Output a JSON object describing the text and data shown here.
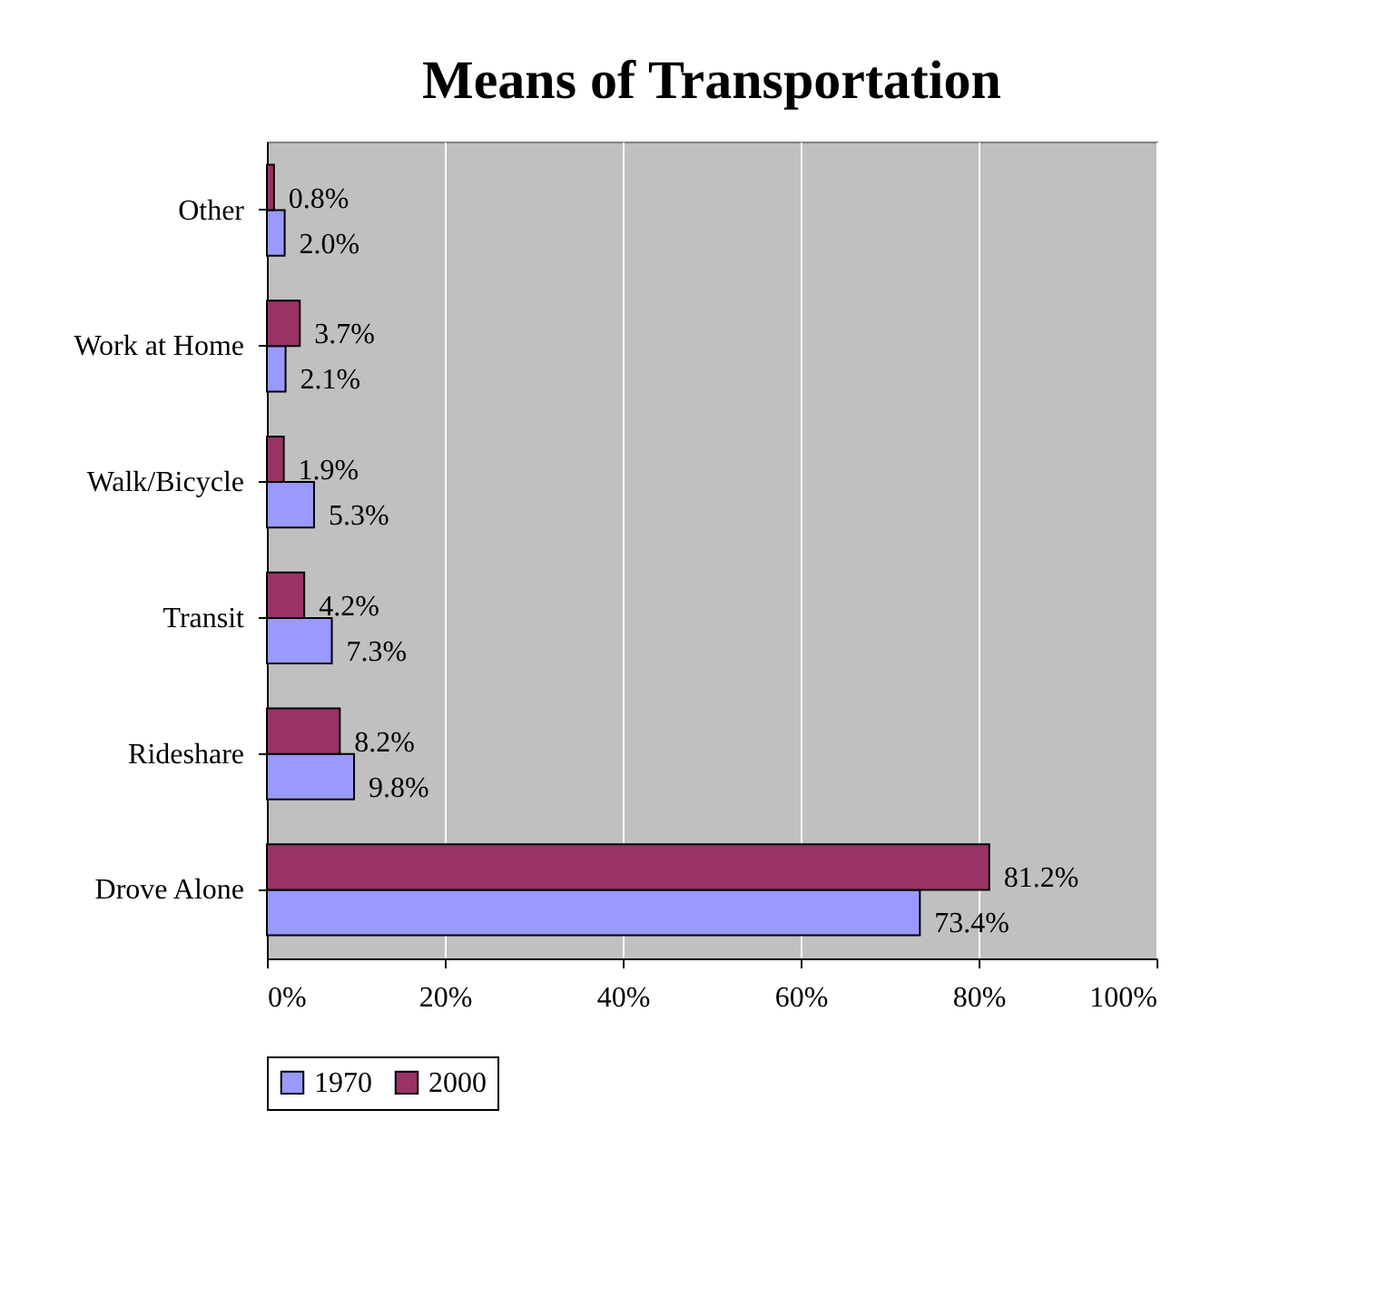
{
  "chart_data": {
    "type": "bar",
    "orientation": "horizontal",
    "title": "Means of Transportation",
    "categories": [
      "Other",
      "Work at Home",
      "Walk/Bicycle",
      "Transit",
      "Rideshare",
      "Drove Alone"
    ],
    "series": [
      {
        "name": "1970",
        "color": "#9999ff",
        "values": [
          2.0,
          2.1,
          5.3,
          7.3,
          9.8,
          73.4
        ],
        "value_labels": [
          "2.0%",
          "2.1%",
          "5.3%",
          "7.3%",
          "9.8%",
          "73.4%"
        ]
      },
      {
        "name": "2000",
        "color": "#993366",
        "values": [
          0.8,
          3.7,
          1.9,
          4.2,
          8.2,
          81.2
        ],
        "value_labels": [
          "0.8%",
          "3.7%",
          "1.9%",
          "4.2%",
          "8.2%",
          "81.2%"
        ]
      }
    ],
    "xlim": [
      0,
      100
    ],
    "xticks": [
      {
        "value": 0,
        "label": "0%"
      },
      {
        "value": 20,
        "label": "20%"
      },
      {
        "value": 40,
        "label": "40%"
      },
      {
        "value": 60,
        "label": "60%"
      },
      {
        "value": 80,
        "label": "80%"
      },
      {
        "value": 100,
        "label": "100%"
      }
    ],
    "grid": "x",
    "legend": "bottom"
  }
}
